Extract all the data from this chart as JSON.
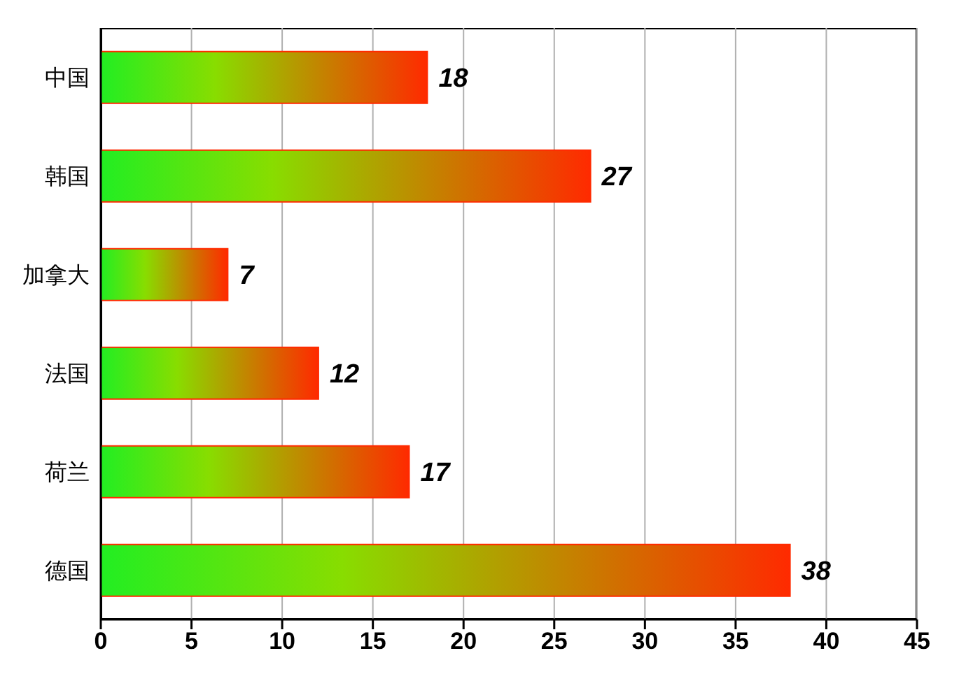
{
  "chart_data": {
    "type": "bar",
    "orientation": "horizontal",
    "categories": [
      "中国",
      "韩国",
      "加拿大",
      "法国",
      "荷兰",
      "德国"
    ],
    "values": [
      18,
      27,
      7,
      12,
      17,
      38
    ],
    "color": "#ff2a00",
    "xlim": [
      0,
      45
    ],
    "xticks": [
      0,
      5,
      10,
      15,
      20,
      25,
      30,
      35,
      40,
      45
    ],
    "grid": "x",
    "data_labels": true
  }
}
